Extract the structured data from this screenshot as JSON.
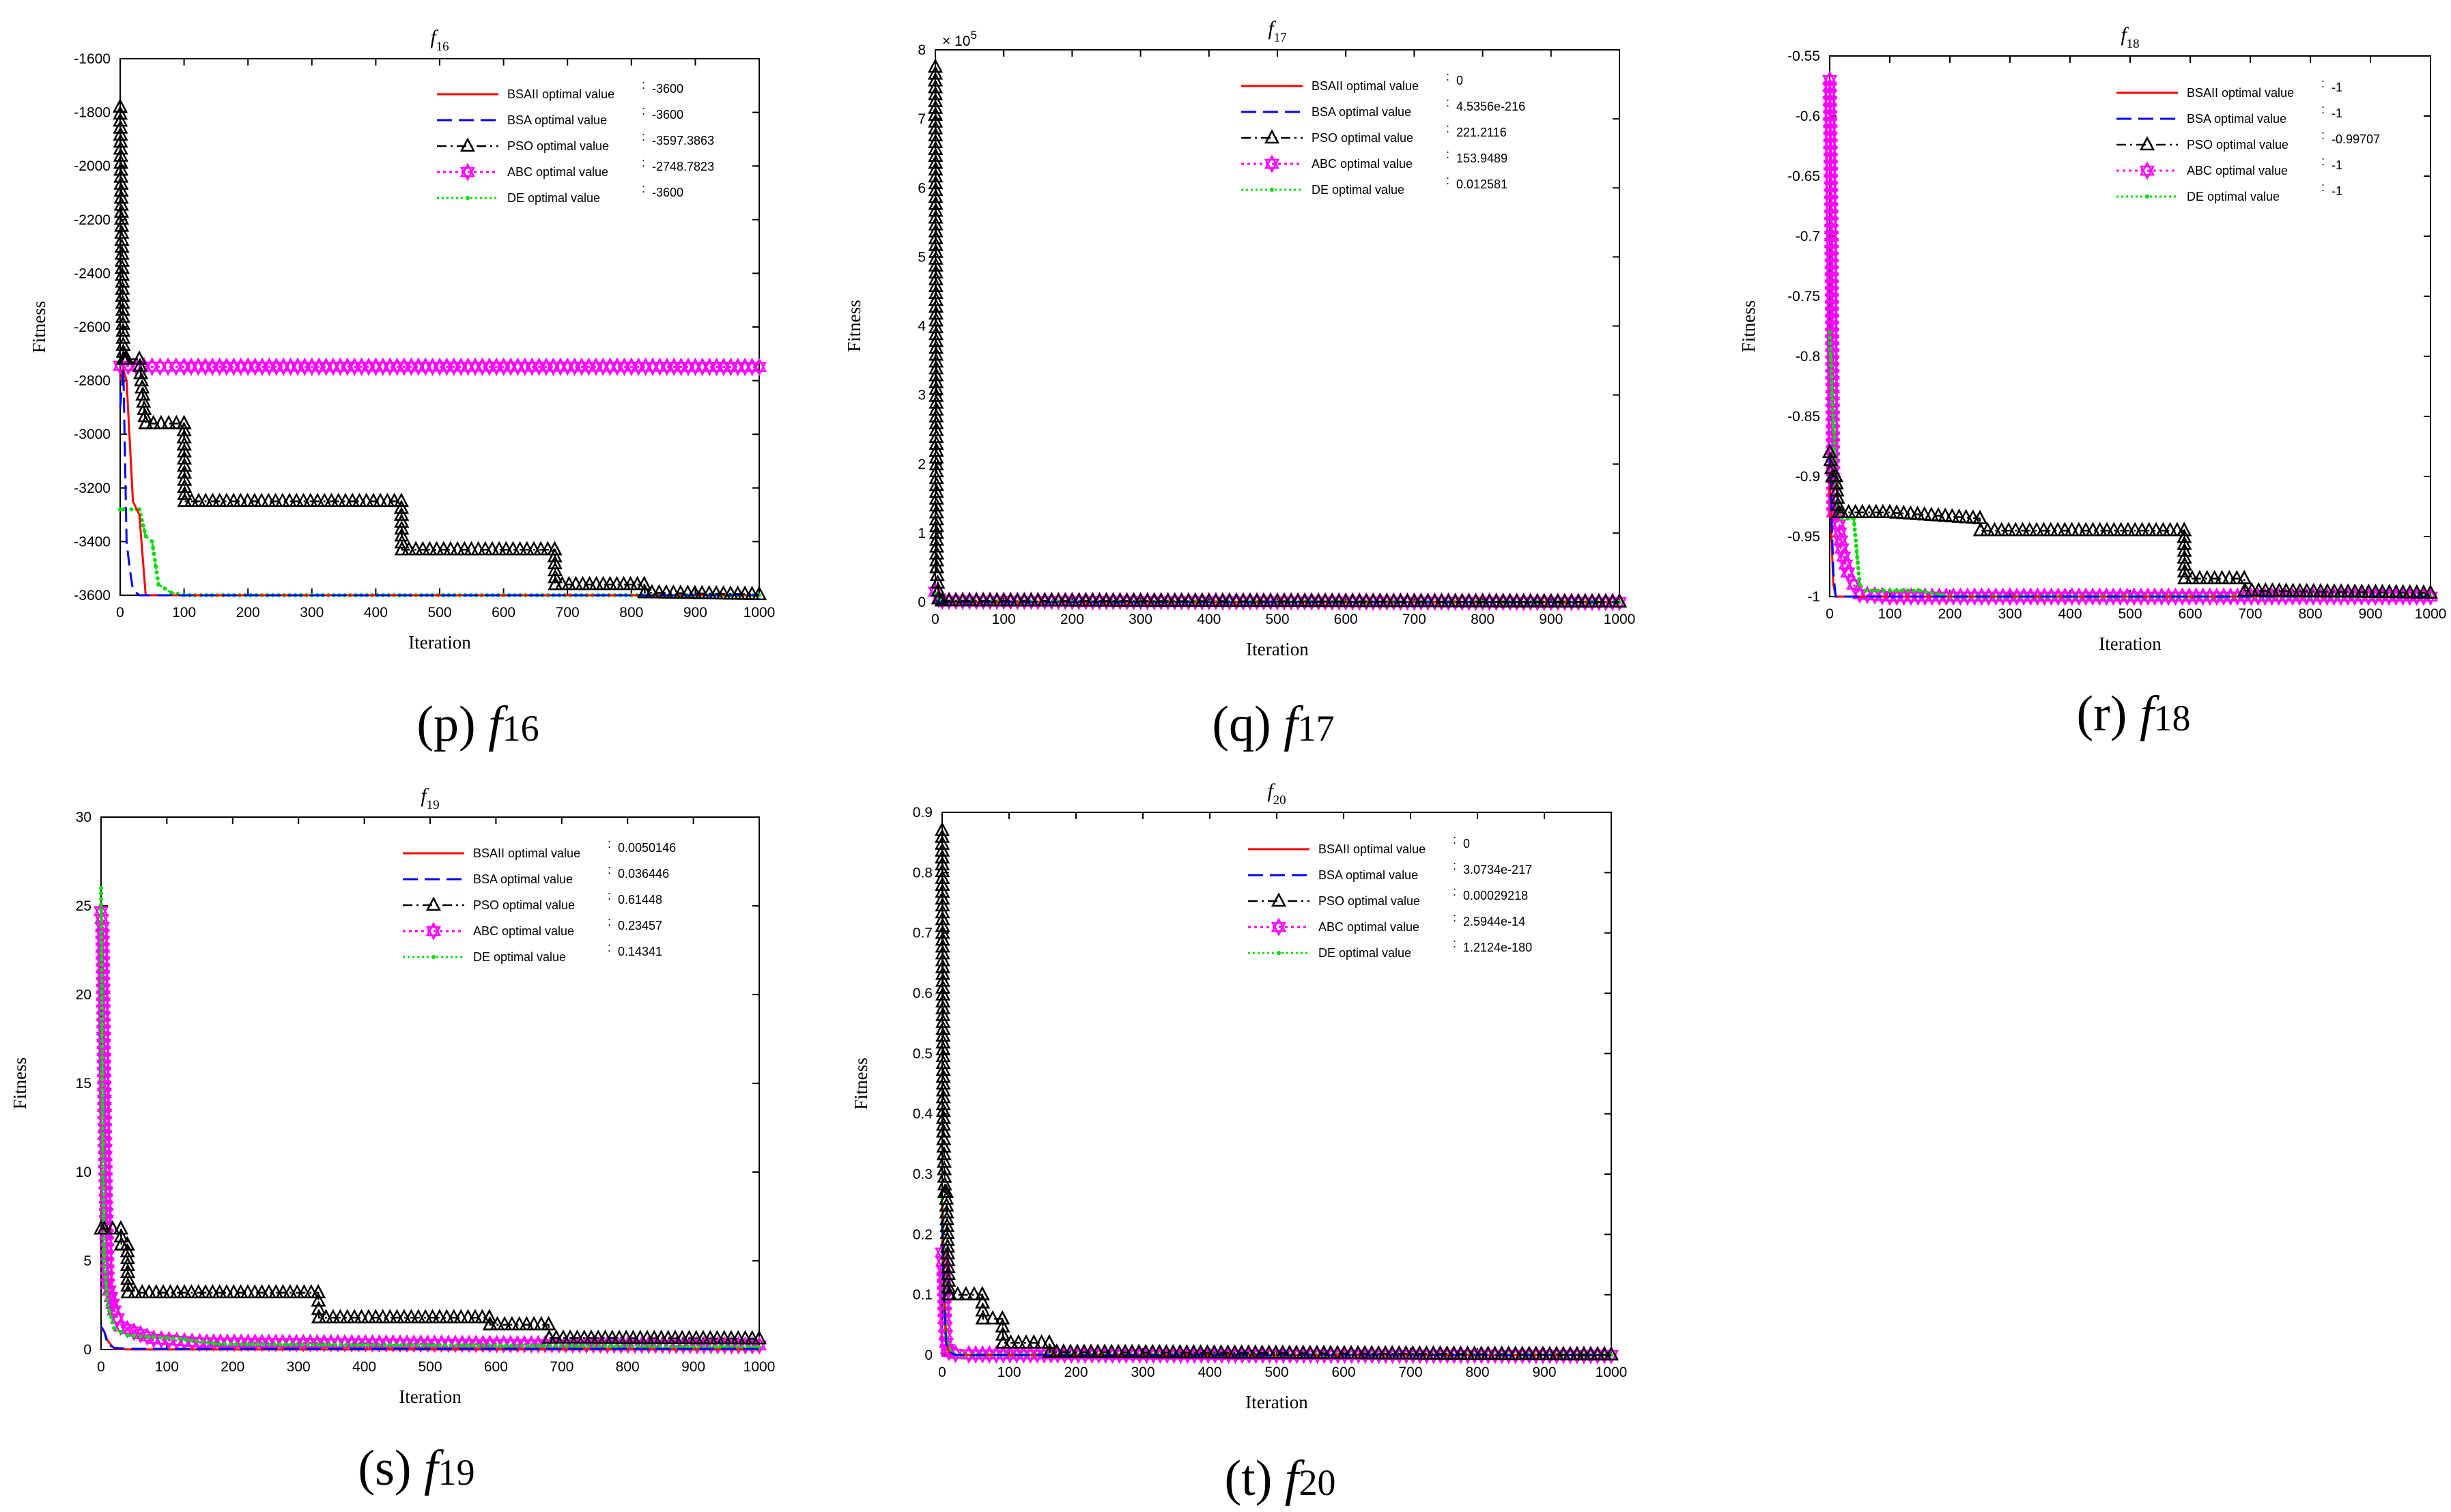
{
  "colors": {
    "BSAII": "#ff0000",
    "BSA": "#0000ff",
    "PSO": "#000000",
    "ABC": "#ff00ff",
    "DE": "#00dd00"
  },
  "chart_data": [
    {
      "id": "p",
      "type": "line",
      "title": "f",
      "title_sub": "16",
      "caption_pre": "(p) ",
      "caption_f": "f",
      "caption_sub": "16",
      "xlabel": "Iteration",
      "ylabel": "Fitness",
      "xlim": [
        0,
        1000
      ],
      "ylim": [
        -3600,
        -1600
      ],
      "xticks": [
        "0",
        "100",
        "200",
        "300",
        "400",
        "500",
        "600",
        "700",
        "800",
        "900",
        "1000"
      ],
      "yticks": [
        "-1600",
        "-1800",
        "-2000",
        "-2200",
        "-2400",
        "-2600",
        "-2800",
        "-3000",
        "-3200",
        "-3400",
        "-3600"
      ],
      "legend": [
        {
          "key": "BSAII",
          "label": "BSAII optimal value",
          "value": "-3600"
        },
        {
          "key": "BSA",
          "label": "BSA optimal value",
          "value": "-3600"
        },
        {
          "key": "PSO",
          "label": "PSO optimal value",
          "value": "-3597.3863"
        },
        {
          "key": "ABC",
          "label": "ABC optimal value",
          "value": "-2748.7823"
        },
        {
          "key": "DE",
          "label": "DE optimal value",
          "value": "-3600"
        }
      ],
      "series": [
        {
          "key": "BSAII",
          "x": [
            0,
            5,
            10,
            20,
            30,
            40,
            60,
            100,
            200,
            500,
            1000
          ],
          "y": [
            -2800,
            -2760,
            -2800,
            -3250,
            -3300,
            -3600,
            -3600,
            -3600,
            -3600,
            -3600,
            -3600
          ]
        },
        {
          "key": "BSA",
          "x": [
            0,
            5,
            10,
            15,
            20,
            30,
            40,
            100,
            500,
            1000
          ],
          "y": [
            -2900,
            -2760,
            -3400,
            -3500,
            -3580,
            -3600,
            -3600,
            -3600,
            -3600,
            -3600
          ]
        },
        {
          "key": "PSO",
          "x": [
            0,
            5,
            8,
            10,
            30,
            40,
            100,
            101,
            440,
            441,
            680,
            681,
            820,
            821,
            1000
          ],
          "y": [
            -1780,
            -2720,
            -2720,
            -2720,
            -2720,
            -2960,
            -2960,
            -3250,
            -3250,
            -3430,
            -3430,
            -3560,
            -3560,
            -3590,
            -3597
          ]
        },
        {
          "key": "ABC",
          "x": [
            0,
            50,
            100,
            200,
            400,
            600,
            800,
            1000
          ],
          "y": [
            -2745,
            -2748,
            -2748,
            -2748,
            -2748,
            -2748,
            -2748,
            -2749
          ]
        },
        {
          "key": "DE",
          "x": [
            0,
            5,
            30,
            40,
            50,
            60,
            80,
            100,
            300,
            600,
            1000
          ],
          "y": [
            -3280,
            -3280,
            -3280,
            -3380,
            -3400,
            -3560,
            -3590,
            -3600,
            -3600,
            -3600,
            -3600
          ]
        }
      ]
    },
    {
      "id": "q",
      "type": "line",
      "title": "f",
      "title_sub": "17",
      "caption_pre": "(q) ",
      "caption_f": "f",
      "caption_sub": "17",
      "xlabel": "Iteration",
      "ylabel": "Fitness",
      "exponent": "× 10",
      "exponent_pow": "5",
      "xlim": [
        0,
        1000
      ],
      "ylim": [
        0,
        8
      ],
      "xticks": [
        "0",
        "100",
        "200",
        "300",
        "400",
        "500",
        "600",
        "700",
        "800",
        "900",
        "1000"
      ],
      "yticks": [
        "0",
        "1",
        "2",
        "3",
        "4",
        "5",
        "6",
        "7",
        "8"
      ],
      "legend": [
        {
          "key": "BSAII",
          "label": "BSAII optimal value",
          "value": "0"
        },
        {
          "key": "BSA",
          "label": "BSA optimal value",
          "value": "4.5356e-216"
        },
        {
          "key": "PSO",
          "label": "PSO optimal value",
          "value": "221.2116"
        },
        {
          "key": "ABC",
          "label": "ABC optimal value",
          "value": "153.9489"
        },
        {
          "key": "DE",
          "label": "DE optimal value",
          "value": "0.012581"
        }
      ],
      "series": [
        {
          "key": "BSAII",
          "x": [
            0,
            5,
            10,
            1000
          ],
          "y": [
            0.02,
            0,
            0,
            0
          ]
        },
        {
          "key": "BSA",
          "x": [
            0,
            5,
            10,
            1000
          ],
          "y": [
            0.03,
            0,
            0,
            0
          ]
        },
        {
          "key": "PSO",
          "x": [
            0,
            2,
            5,
            10,
            1000
          ],
          "y": [
            7.75,
            0.5,
            0.05,
            0.02,
            0.002
          ]
        },
        {
          "key": "ABC",
          "x": [
            0,
            5,
            10,
            1000
          ],
          "y": [
            0.15,
            0.05,
            0.02,
            0.0015
          ]
        },
        {
          "key": "DE",
          "x": [
            0,
            5,
            10,
            1000
          ],
          "y": [
            0.12,
            0.03,
            0.01,
            0
          ]
        }
      ]
    },
    {
      "id": "r",
      "type": "line",
      "title": "f",
      "title_sub": "18",
      "caption_pre": "(r) ",
      "caption_f": "f",
      "caption_sub": "18",
      "xlabel": "Iteration",
      "ylabel": "Fitness",
      "xlim": [
        0,
        1000
      ],
      "ylim": [
        -1,
        -0.55
      ],
      "xticks": [
        "0",
        "100",
        "200",
        "300",
        "400",
        "500",
        "600",
        "700",
        "800",
        "900",
        "1000"
      ],
      "yticks": [
        "-0.55",
        "-0.6",
        "-0.65",
        "-0.7",
        "-0.75",
        "-0.8",
        "-0.85",
        "-0.9",
        "-0.95",
        "-1"
      ],
      "legend": [
        {
          "key": "BSAII",
          "label": "BSAII optimal value",
          "value": "-1"
        },
        {
          "key": "BSA",
          "label": "BSA optimal value",
          "value": "-1"
        },
        {
          "key": "PSO",
          "label": "PSO optimal value",
          "value": "-0.99707"
        },
        {
          "key": "ABC",
          "label": "ABC optimal value",
          "value": "-1"
        },
        {
          "key": "DE",
          "label": "DE optimal value",
          "value": "-1"
        }
      ],
      "series": [
        {
          "key": "BSAII",
          "x": [
            0,
            3,
            6,
            10,
            20,
            30,
            1000
          ],
          "y": [
            -0.9,
            -0.95,
            -0.99,
            -1,
            -1,
            -1,
            -1
          ]
        },
        {
          "key": "BSA",
          "x": [
            0,
            3,
            6,
            10,
            20,
            1000
          ],
          "y": [
            -0.88,
            -0.93,
            -0.98,
            -1,
            -1,
            -1
          ]
        },
        {
          "key": "PSO",
          "x": [
            0,
            5,
            10,
            15,
            20,
            100,
            250,
            251,
            590,
            591,
            690,
            691,
            1000
          ],
          "y": [
            -0.88,
            -0.9,
            -0.9,
            -0.93,
            -0.93,
            -0.93,
            -0.935,
            -0.945,
            -0.945,
            -0.985,
            -0.985,
            -0.995,
            -0.997
          ]
        },
        {
          "key": "ABC",
          "x": [
            0,
            3,
            6,
            10,
            15,
            20,
            30,
            40,
            50,
            100,
            300,
            1000
          ],
          "y": [
            -0.57,
            -0.7,
            -0.93,
            -0.93,
            -0.94,
            -0.96,
            -0.98,
            -0.99,
            -0.998,
            -1,
            -1,
            -1
          ]
        },
        {
          "key": "DE",
          "x": [
            0,
            5,
            10,
            15,
            20,
            40,
            50,
            60,
            100,
            150,
            200,
            1000
          ],
          "y": [
            -0.78,
            -0.84,
            -0.9,
            -0.93,
            -0.935,
            -0.935,
            -0.99,
            -0.995,
            -0.995,
            -0.995,
            -1,
            -1
          ]
        }
      ]
    },
    {
      "id": "s",
      "type": "line",
      "title": "f",
      "title_sub": "19",
      "caption_pre": "(s) ",
      "caption_f": "f",
      "caption_sub": "19",
      "xlabel": "Iteration",
      "ylabel": "Fitness",
      "xlim": [
        0,
        1000
      ],
      "ylim": [
        0,
        30
      ],
      "xticks": [
        "0",
        "100",
        "200",
        "300",
        "400",
        "500",
        "600",
        "700",
        "800",
        "900",
        "1000"
      ],
      "yticks": [
        "0",
        "5",
        "10",
        "15",
        "20",
        "25",
        "30"
      ],
      "legend": [
        {
          "key": "BSAII",
          "label": "BSAII optimal value",
          "value": "0.0050146"
        },
        {
          "key": "BSA",
          "label": "BSA optimal value",
          "value": "0.036446"
        },
        {
          "key": "PSO",
          "label": "PSO optimal value",
          "value": "0.61448"
        },
        {
          "key": "ABC",
          "label": "ABC optimal value",
          "value": "0.23457"
        },
        {
          "key": "DE",
          "label": "DE optimal value",
          "value": "0.14341"
        }
      ],
      "series": [
        {
          "key": "BSAII",
          "x": [
            0,
            5,
            10,
            20,
            40,
            1000
          ],
          "y": [
            1.2,
            1.0,
            0.5,
            0.05,
            0.005,
            0.005
          ]
        },
        {
          "key": "BSA",
          "x": [
            0,
            5,
            10,
            20,
            40,
            1000
          ],
          "y": [
            1.3,
            1.0,
            0.3,
            0.1,
            0.04,
            0.036
          ]
        },
        {
          "key": "PSO",
          "x": [
            0,
            5,
            30,
            31,
            40,
            41,
            330,
            331,
            590,
            591,
            680,
            681,
            1000
          ],
          "y": [
            6.8,
            6.8,
            6.8,
            5.9,
            5.9,
            3.2,
            3.2,
            1.8,
            1.8,
            1.4,
            1.4,
            0.65,
            0.61
          ]
        },
        {
          "key": "ABC",
          "x": [
            0,
            2,
            4,
            6,
            10,
            20,
            30,
            50,
            80,
            150,
            1000
          ],
          "y": [
            24.7,
            23.8,
            18,
            11.3,
            3.7,
            2.2,
            1.3,
            1.0,
            0.6,
            0.4,
            0.23
          ]
        },
        {
          "key": "DE",
          "x": [
            0,
            3,
            5,
            10,
            20,
            40,
            80,
            120,
            180,
            1000
          ],
          "y": [
            26,
            10,
            5,
            2.5,
            1.2,
            0.8,
            0.7,
            0.6,
            0.3,
            0.14
          ]
        }
      ]
    },
    {
      "id": "t",
      "type": "line",
      "title": "f",
      "title_sub": "20",
      "caption_pre": "(t) ",
      "caption_f": "f",
      "caption_sub": "20",
      "xlabel": "Iteration",
      "ylabel": "Fitness",
      "xlim": [
        0,
        1000
      ],
      "ylim": [
        0,
        0.9
      ],
      "xticks": [
        "0",
        "100",
        "200",
        "300",
        "400",
        "500",
        "600",
        "700",
        "800",
        "900",
        "1000"
      ],
      "yticks": [
        "0",
        "0.1",
        "0.2",
        "0.3",
        "0.4",
        "0.5",
        "0.6",
        "0.7",
        "0.8",
        "0.9"
      ],
      "legend": [
        {
          "key": "BSAII",
          "label": "BSAII optimal value",
          "value": "0"
        },
        {
          "key": "BSA",
          "label": "BSA optimal value",
          "value": "3.0734e-217"
        },
        {
          "key": "PSO",
          "label": "PSO optimal value",
          "value": "0.00029218"
        },
        {
          "key": "ABC",
          "label": "ABC optimal value",
          "value": "2.5944e-14"
        },
        {
          "key": "DE",
          "label": "DE optimal value",
          "value": "1.2124e-180"
        }
      ],
      "series": [
        {
          "key": "BSAII",
          "x": [
            0,
            3,
            6,
            10,
            20,
            1000
          ],
          "y": [
            0.25,
            0.1,
            0.02,
            0.005,
            0,
            0
          ]
        },
        {
          "key": "BSA",
          "x": [
            0,
            3,
            6,
            10,
            20,
            1000
          ],
          "y": [
            0.22,
            0.08,
            0.02,
            0.005,
            0,
            0
          ]
        },
        {
          "key": "PSO",
          "x": [
            0,
            2,
            4,
            6,
            10,
            11,
            60,
            61,
            90,
            91,
            160,
            161,
            1000
          ],
          "y": [
            0.87,
            0.37,
            0.27,
            0.27,
            0.1,
            0.1,
            0.1,
            0.06,
            0.06,
            0.02,
            0.02,
            0.005,
            0.0003
          ]
        },
        {
          "key": "ABC",
          "x": [
            0,
            2,
            4,
            6,
            8,
            10,
            20,
            40,
            1000
          ],
          "y": [
            0.17,
            0.14,
            0.06,
            0.02,
            0.01,
            0.005,
            0.002,
            0.001,
            0
          ]
        },
        {
          "key": "DE",
          "x": [
            0,
            3,
            6,
            10,
            20,
            1000
          ],
          "y": [
            0.26,
            0.1,
            0.03,
            0.01,
            0,
            0
          ]
        }
      ]
    }
  ]
}
